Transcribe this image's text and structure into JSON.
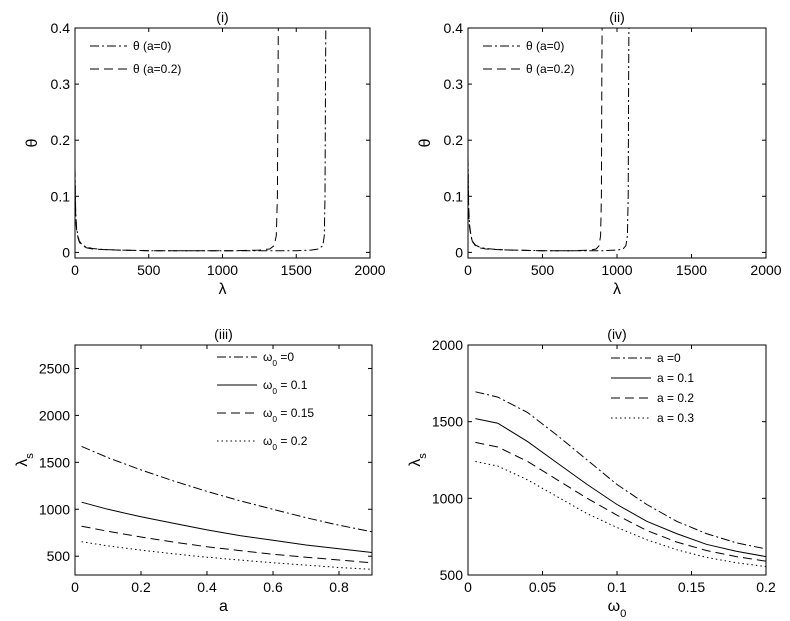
{
  "chart_data": [
    {
      "type": "line",
      "title": "(i)",
      "xlabel": "λ",
      "ylabel": "θ",
      "xlim": [
        0,
        2000
      ],
      "ylim": [
        -0.01,
        0.4
      ],
      "xticks": [
        0,
        500,
        1000,
        1500,
        2000
      ],
      "yticks": [
        0,
        0.1,
        0.2,
        0.3,
        0.4
      ],
      "grid": false,
      "legend": "top-left",
      "series": [
        {
          "name": "θ (a=0)",
          "dash": "dashdot",
          "x": [
            0,
            5,
            10,
            20,
            30,
            50,
            80,
            120,
            200,
            300,
            500,
            700,
            900,
            1100,
            1300,
            1500,
            1600,
            1650,
            1680,
            1690,
            1695,
            1698,
            1700
          ],
          "y": [
            0.15,
            0.07,
            0.045,
            0.028,
            0.02,
            0.013,
            0.009,
            0.007,
            0.005,
            0.004,
            0.003,
            0.003,
            0.003,
            0.003,
            0.003,
            0.003,
            0.004,
            0.006,
            0.012,
            0.03,
            0.1,
            0.3,
            0.4
          ]
        },
        {
          "name": "θ (a=0.2)",
          "dash": "dashed",
          "x": [
            0,
            5,
            10,
            20,
            30,
            50,
            80,
            120,
            200,
            300,
            500,
            700,
            900,
            1100,
            1250,
            1320,
            1350,
            1365,
            1372,
            1376,
            1378
          ],
          "y": [
            0.13,
            0.065,
            0.042,
            0.026,
            0.018,
            0.012,
            0.008,
            0.006,
            0.005,
            0.004,
            0.003,
            0.003,
            0.003,
            0.003,
            0.004,
            0.006,
            0.012,
            0.03,
            0.1,
            0.3,
            0.4
          ]
        }
      ]
    },
    {
      "type": "line",
      "title": "(ii)",
      "xlabel": "λ",
      "ylabel": "θ",
      "xlim": [
        0,
        2000
      ],
      "ylim": [
        -0.01,
        0.4
      ],
      "xticks": [
        0,
        500,
        1000,
        1500,
        2000
      ],
      "yticks": [
        0,
        0.1,
        0.2,
        0.3,
        0.4
      ],
      "grid": false,
      "legend": "top-left",
      "series": [
        {
          "name": "θ (a=0)",
          "dash": "dashdot",
          "x": [
            0,
            5,
            10,
            20,
            30,
            50,
            80,
            120,
            200,
            300,
            500,
            700,
            900,
            1000,
            1040,
            1060,
            1070,
            1075,
            1078,
            1080
          ],
          "y": [
            0.17,
            0.08,
            0.05,
            0.03,
            0.02,
            0.013,
            0.009,
            0.007,
            0.005,
            0.004,
            0.003,
            0.003,
            0.003,
            0.004,
            0.006,
            0.012,
            0.03,
            0.1,
            0.3,
            0.4
          ]
        },
        {
          "name": "θ (a=0.2)",
          "dash": "dashed",
          "x": [
            0,
            5,
            10,
            20,
            30,
            50,
            80,
            120,
            200,
            300,
            500,
            700,
            820,
            860,
            880,
            890,
            895,
            898,
            900
          ],
          "y": [
            0.15,
            0.07,
            0.045,
            0.028,
            0.019,
            0.012,
            0.008,
            0.006,
            0.005,
            0.004,
            0.003,
            0.003,
            0.004,
            0.006,
            0.012,
            0.03,
            0.1,
            0.3,
            0.4
          ]
        }
      ]
    },
    {
      "type": "line",
      "title": "(iii)",
      "xlabel": "a",
      "ylabel": "λs",
      "xlim": [
        0,
        0.9
      ],
      "ylim": [
        300,
        2750
      ],
      "xticks": [
        0,
        0.2,
        0.4,
        0.6,
        0.8
      ],
      "yticks": [
        500,
        1000,
        1500,
        2000,
        2500
      ],
      "grid": false,
      "legend": "top-right",
      "series": [
        {
          "name": "ω0 =0",
          "dash": "dashdot",
          "x": [
            0.02,
            0.1,
            0.2,
            0.3,
            0.4,
            0.5,
            0.6,
            0.7,
            0.8,
            0.9
          ],
          "y": [
            1670,
            1550,
            1420,
            1300,
            1190,
            1090,
            1000,
            910,
            830,
            760
          ]
        },
        {
          "name": "ω0 = 0.1",
          "dash": "solid",
          "x": [
            0.02,
            0.1,
            0.2,
            0.3,
            0.4,
            0.5,
            0.6,
            0.7,
            0.8,
            0.9
          ],
          "y": [
            1075,
            1000,
            920,
            850,
            780,
            720,
            670,
            620,
            580,
            540
          ]
        },
        {
          "name": "ω0 = 0.15",
          "dash": "dashed",
          "x": [
            0.02,
            0.1,
            0.2,
            0.3,
            0.4,
            0.5,
            0.6,
            0.7,
            0.8,
            0.9
          ],
          "y": [
            820,
            765,
            705,
            650,
            600,
            560,
            520,
            490,
            460,
            430
          ]
        },
        {
          "name": "ω0 = 0.2",
          "dash": "dotted",
          "x": [
            0.02,
            0.1,
            0.2,
            0.3,
            0.4,
            0.5,
            0.6,
            0.7,
            0.8,
            0.9
          ],
          "y": [
            655,
            610,
            565,
            525,
            490,
            460,
            430,
            405,
            380,
            360
          ]
        }
      ]
    },
    {
      "type": "line",
      "title": "(iv)",
      "xlabel": "ω0",
      "ylabel": "λs",
      "xlim": [
        0,
        0.2
      ],
      "ylim": [
        500,
        2000
      ],
      "xticks": [
        0,
        0.05,
        0.1,
        0.15,
        0.2
      ],
      "yticks": [
        500,
        1000,
        1500,
        2000
      ],
      "grid": false,
      "legend": "top-right",
      "series": [
        {
          "name": "a =0",
          "dash": "dashdot",
          "x": [
            0.005,
            0.02,
            0.04,
            0.06,
            0.08,
            0.1,
            0.12,
            0.14,
            0.16,
            0.18,
            0.2
          ],
          "y": [
            1695,
            1660,
            1560,
            1410,
            1250,
            1090,
            960,
            850,
            770,
            710,
            670
          ]
        },
        {
          "name": "a = 0.1",
          "dash": "solid",
          "x": [
            0.005,
            0.02,
            0.04,
            0.06,
            0.08,
            0.1,
            0.12,
            0.14,
            0.16,
            0.18,
            0.2
          ],
          "y": [
            1520,
            1490,
            1370,
            1230,
            1090,
            960,
            850,
            770,
            700,
            655,
            620
          ]
        },
        {
          "name": "a = 0.2",
          "dash": "dashed",
          "x": [
            0.005,
            0.02,
            0.04,
            0.06,
            0.08,
            0.1,
            0.12,
            0.14,
            0.16,
            0.18,
            0.2
          ],
          "y": [
            1365,
            1335,
            1240,
            1120,
            1000,
            890,
            790,
            715,
            660,
            620,
            590
          ]
        },
        {
          "name": "a = 0.3",
          "dash": "dotted",
          "x": [
            0.005,
            0.02,
            0.04,
            0.06,
            0.08,
            0.1,
            0.12,
            0.14,
            0.16,
            0.18,
            0.2
          ],
          "y": [
            1240,
            1210,
            1120,
            1010,
            900,
            810,
            730,
            665,
            615,
            580,
            555
          ]
        }
      ]
    }
  ]
}
